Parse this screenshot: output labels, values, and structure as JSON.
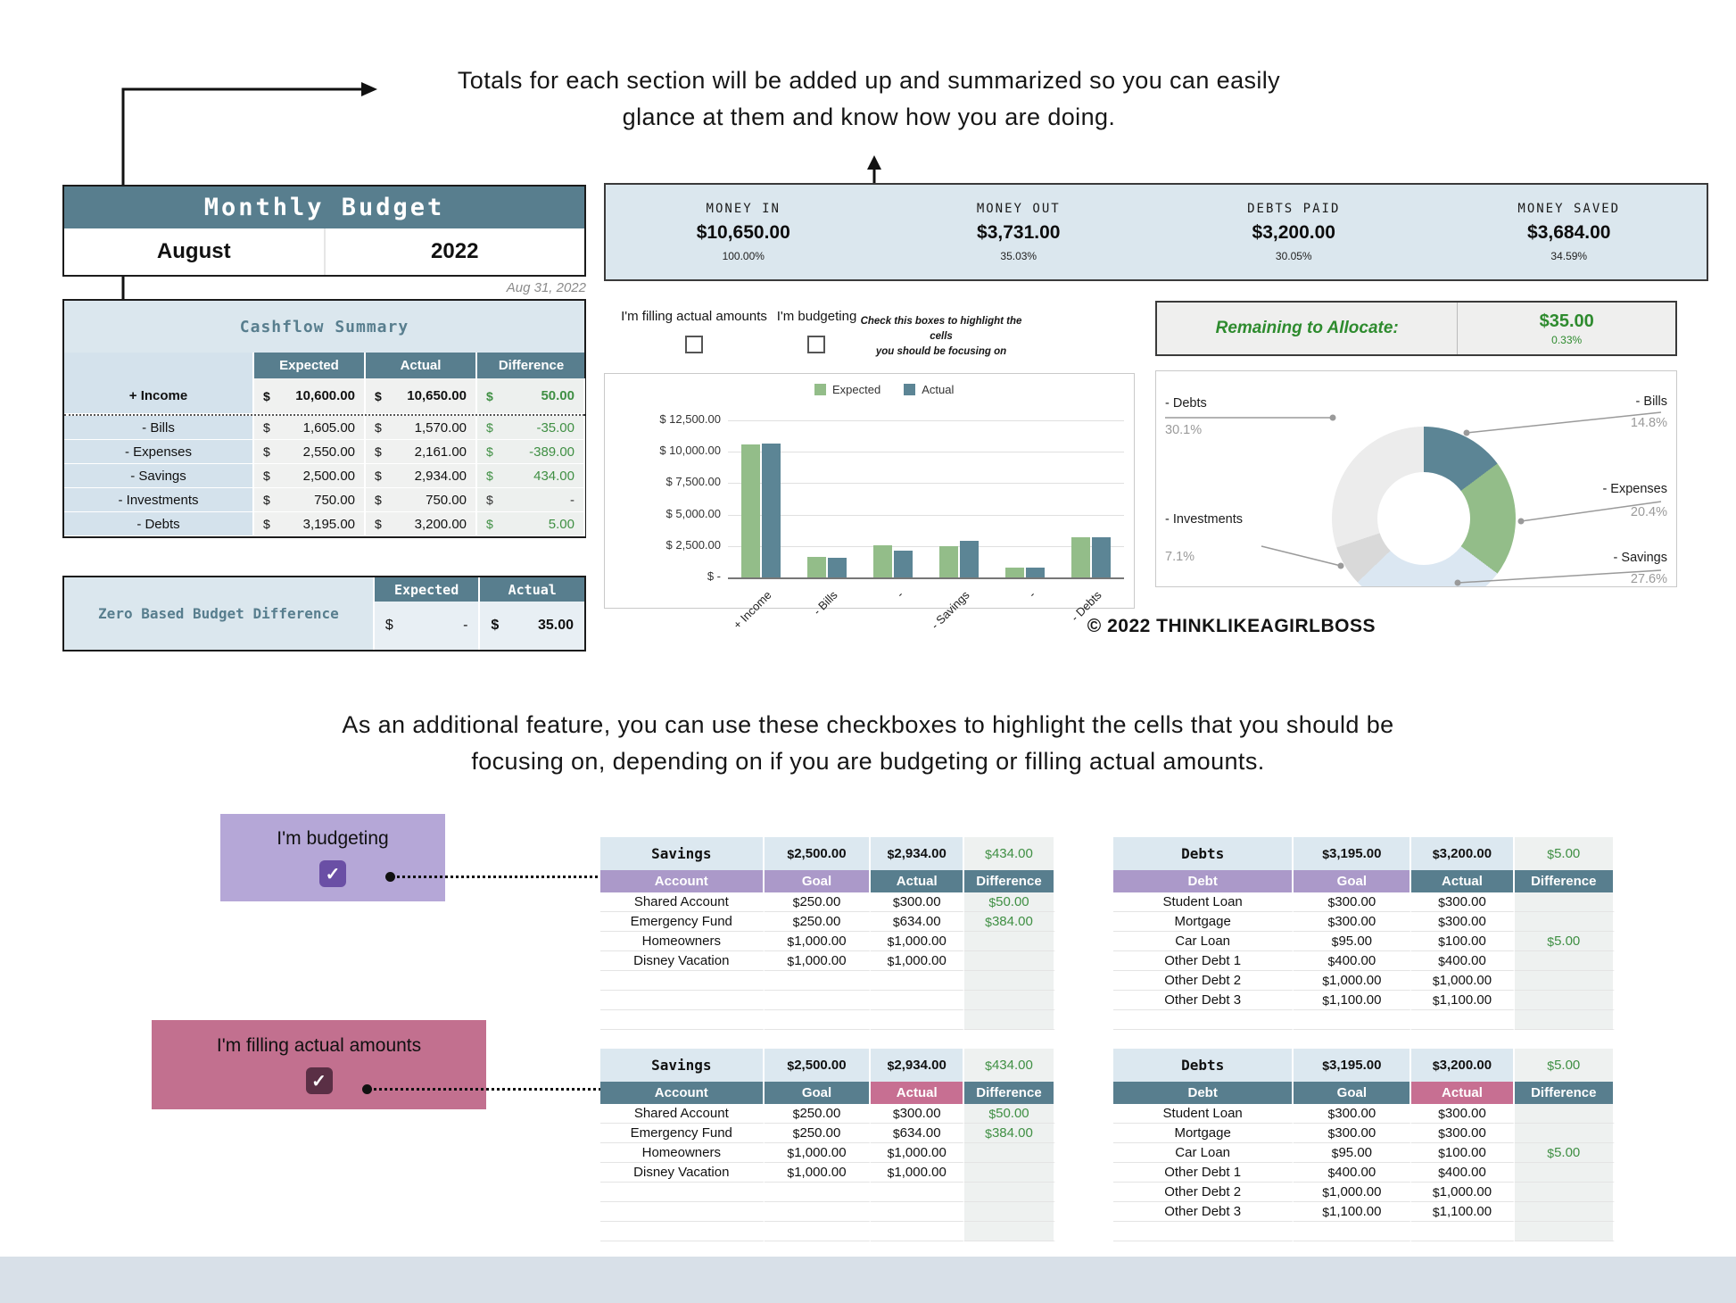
{
  "colors": {
    "slate": "#587e8e",
    "light_blue": "#dbe7ee",
    "green": "#3f8f43",
    "purple_header": "#ab99c9",
    "purple_box": "#b5a7d7",
    "purple_check": "#6a4fa5",
    "pink_header": "#c76f92",
    "pink_box": "#c2708f",
    "pink_check": "#5a2f45",
    "chart_green": "#93bd89",
    "chart_slate": "#5c8595"
  },
  "annotations": {
    "top_line1": "Totals for each section will be added up and summarized so you can easily",
    "top_line2": "glance at them and know how you are doing.",
    "mid_line1": "As an additional feature, you can use these checkboxes to highlight the cells that you should be",
    "mid_line2": "focusing on, depending on if you are budgeting or filling actual amounts."
  },
  "monthly_budget": {
    "title": "Monthly Budget",
    "month": "August",
    "year": "2022",
    "date_note": "Aug 31, 2022"
  },
  "summary_cards": [
    {
      "label": "MONEY IN",
      "value": "$10,650.00",
      "pct": "100.00%"
    },
    {
      "label": "MONEY OUT",
      "value": "$3,731.00",
      "pct": "35.03%"
    },
    {
      "label": "DEBTS PAID",
      "value": "$3,200.00",
      "pct": "30.05%"
    },
    {
      "label": "MONEY SAVED",
      "value": "$3,684.00",
      "pct": "34.59%"
    }
  ],
  "cashflow": {
    "title": "Cashflow Summary",
    "headers": [
      "Expected",
      "Actual",
      "Difference"
    ],
    "rows": [
      {
        "label": "+ Income",
        "expected": "10,600.00",
        "actual": "10,650.00",
        "diff": "50.00",
        "bold": true,
        "sep": true
      },
      {
        "label": "-  Bills",
        "expected": "1,605.00",
        "actual": "1,570.00",
        "diff": "-35.00"
      },
      {
        "label": "-  Expenses",
        "expected": "2,550.00",
        "actual": "2,161.00",
        "diff": "-389.00"
      },
      {
        "label": "-  Savings",
        "expected": "2,500.00",
        "actual": "2,934.00",
        "diff": "434.00"
      },
      {
        "label": "-  Investments",
        "expected": "750.00",
        "actual": "750.00",
        "diff": "-"
      },
      {
        "label": "-  Debts",
        "expected": "3,195.00",
        "actual": "3,200.00",
        "diff": "5.00"
      }
    ]
  },
  "zero_based": {
    "label": "Zero Based Budget Difference",
    "headers": [
      "Expected",
      "Actual"
    ],
    "expected": "-",
    "actual": "35.00"
  },
  "checkbox_row": {
    "actual_label": "I'm filling actual amounts",
    "budget_label": "I'm budgeting",
    "note1": "Check this boxes to highlight the cells",
    "note2": "you should be focusing on"
  },
  "remaining": {
    "label": "Remaining to Allocate:",
    "value": "$35.00",
    "pct": "0.33%"
  },
  "copyright": "©  2022 THINKLIKEAGIRLBOSS",
  "mode_boxes": {
    "budgeting": "I'm budgeting",
    "actuals": "I'm filling actual amounts"
  },
  "chart_data": [
    {
      "type": "bar",
      "title": "Expected vs Actual by category",
      "categories": [
        "+ Income",
        "- Bills",
        "-",
        "- Savings",
        "-",
        "- Debts"
      ],
      "series": [
        {
          "name": "Expected",
          "values": [
            10600,
            1605,
            2550,
            2500,
            750,
            3195
          ]
        },
        {
          "name": "Actual",
          "values": [
            10650,
            1570,
            2161,
            2934,
            750,
            3200
          ]
        }
      ],
      "ylim": [
        0,
        12500
      ],
      "yticks": [
        "$ 12,500.00",
        "$ 10,000.00",
        "$ 7,500.00",
        "$ 5,000.00",
        "$ 2,500.00",
        "$ -"
      ],
      "legend_position": "top",
      "grid": true
    },
    {
      "type": "pie",
      "donut": true,
      "title": "Spending breakdown",
      "slices": [
        {
          "label": "-  Bills",
          "pct": "14.8%",
          "value": 14.8,
          "color": "#5c8595"
        },
        {
          "label": "-  Expenses",
          "pct": "20.4%",
          "value": 20.4,
          "color": "#93bd89"
        },
        {
          "label": "-  Savings",
          "pct": "27.6%",
          "value": 27.6,
          "color": "#dbe7f2"
        },
        {
          "label": "-  Investments",
          "pct": "7.1%",
          "value": 7.1,
          "color": "#d9d9d9"
        },
        {
          "label": "-  Debts",
          "pct": "30.1%",
          "value": 30.1,
          "color": "#ececec"
        }
      ]
    }
  ],
  "tables": {
    "savings_budgeting": {
      "title": "Savings",
      "title_goal": "2,500.00",
      "title_actual": "2,934.00",
      "title_diff": "434.00",
      "headers": [
        {
          "text": "Account",
          "style": "purple"
        },
        {
          "text": "Goal",
          "style": "purple"
        },
        {
          "text": "Actual",
          "style": "slate"
        },
        {
          "text": "Difference",
          "style": "slate"
        }
      ],
      "rows": [
        [
          "Shared Account",
          "250.00",
          "300.00",
          "50.00"
        ],
        [
          "Emergency Fund",
          "250.00",
          "634.00",
          "384.00"
        ],
        [
          "Homeowners",
          "1,000.00",
          "1,000.00",
          ""
        ],
        [
          "Disney Vacation",
          "1,000.00",
          "1,000.00",
          ""
        ],
        [
          "",
          "",
          "",
          ""
        ],
        [
          "",
          "",
          "",
          ""
        ],
        [
          "",
          "",
          "",
          ""
        ]
      ]
    },
    "debts_budgeting": {
      "title": "Debts",
      "title_goal": "3,195.00",
      "title_actual": "3,200.00",
      "title_diff": "5.00",
      "headers": [
        {
          "text": "Debt",
          "style": "purple"
        },
        {
          "text": "Goal",
          "style": "purple"
        },
        {
          "text": "Actual",
          "style": "slate"
        },
        {
          "text": "Difference",
          "style": "slate"
        }
      ],
      "rows": [
        [
          "Student Loan",
          "300.00",
          "300.00",
          ""
        ],
        [
          "Mortgage",
          "300.00",
          "300.00",
          ""
        ],
        [
          "Car Loan",
          "95.00",
          "100.00",
          "5.00"
        ],
        [
          "Other Debt 1",
          "400.00",
          "400.00",
          ""
        ],
        [
          "Other Debt 2",
          "1,000.00",
          "1,000.00",
          ""
        ],
        [
          "Other Debt 3",
          "1,100.00",
          "1,100.00",
          ""
        ],
        [
          "",
          "",
          "",
          ""
        ]
      ]
    },
    "savings_actuals": {
      "title": "Savings",
      "title_goal": "2,500.00",
      "title_actual": "2,934.00",
      "title_diff": "434.00",
      "headers": [
        {
          "text": "Account",
          "style": "slate"
        },
        {
          "text": "Goal",
          "style": "slate"
        },
        {
          "text": "Actual",
          "style": "pink"
        },
        {
          "text": "Difference",
          "style": "slate"
        }
      ],
      "rows": [
        [
          "Shared Account",
          "250.00",
          "300.00",
          "50.00"
        ],
        [
          "Emergency Fund",
          "250.00",
          "634.00",
          "384.00"
        ],
        [
          "Homeowners",
          "1,000.00",
          "1,000.00",
          ""
        ],
        [
          "Disney Vacation",
          "1,000.00",
          "1,000.00",
          ""
        ],
        [
          "",
          "",
          "",
          ""
        ],
        [
          "",
          "",
          "",
          ""
        ],
        [
          "",
          "",
          "",
          ""
        ]
      ]
    },
    "debts_actuals": {
      "title": "Debts",
      "title_goal": "3,195.00",
      "title_actual": "3,200.00",
      "title_diff": "5.00",
      "headers": [
        {
          "text": "Debt",
          "style": "slate"
        },
        {
          "text": "Goal",
          "style": "slate"
        },
        {
          "text": "Actual",
          "style": "pink"
        },
        {
          "text": "Difference",
          "style": "slate"
        }
      ],
      "rows": [
        [
          "Student Loan",
          "300.00",
          "300.00",
          ""
        ],
        [
          "Mortgage",
          "300.00",
          "300.00",
          ""
        ],
        [
          "Car Loan",
          "95.00",
          "100.00",
          "5.00"
        ],
        [
          "Other Debt 1",
          "400.00",
          "400.00",
          ""
        ],
        [
          "Other Debt 2",
          "1,000.00",
          "1,000.00",
          ""
        ],
        [
          "Other Debt 3",
          "1,100.00",
          "1,100.00",
          ""
        ],
        [
          "",
          "",
          "",
          ""
        ]
      ]
    }
  }
}
